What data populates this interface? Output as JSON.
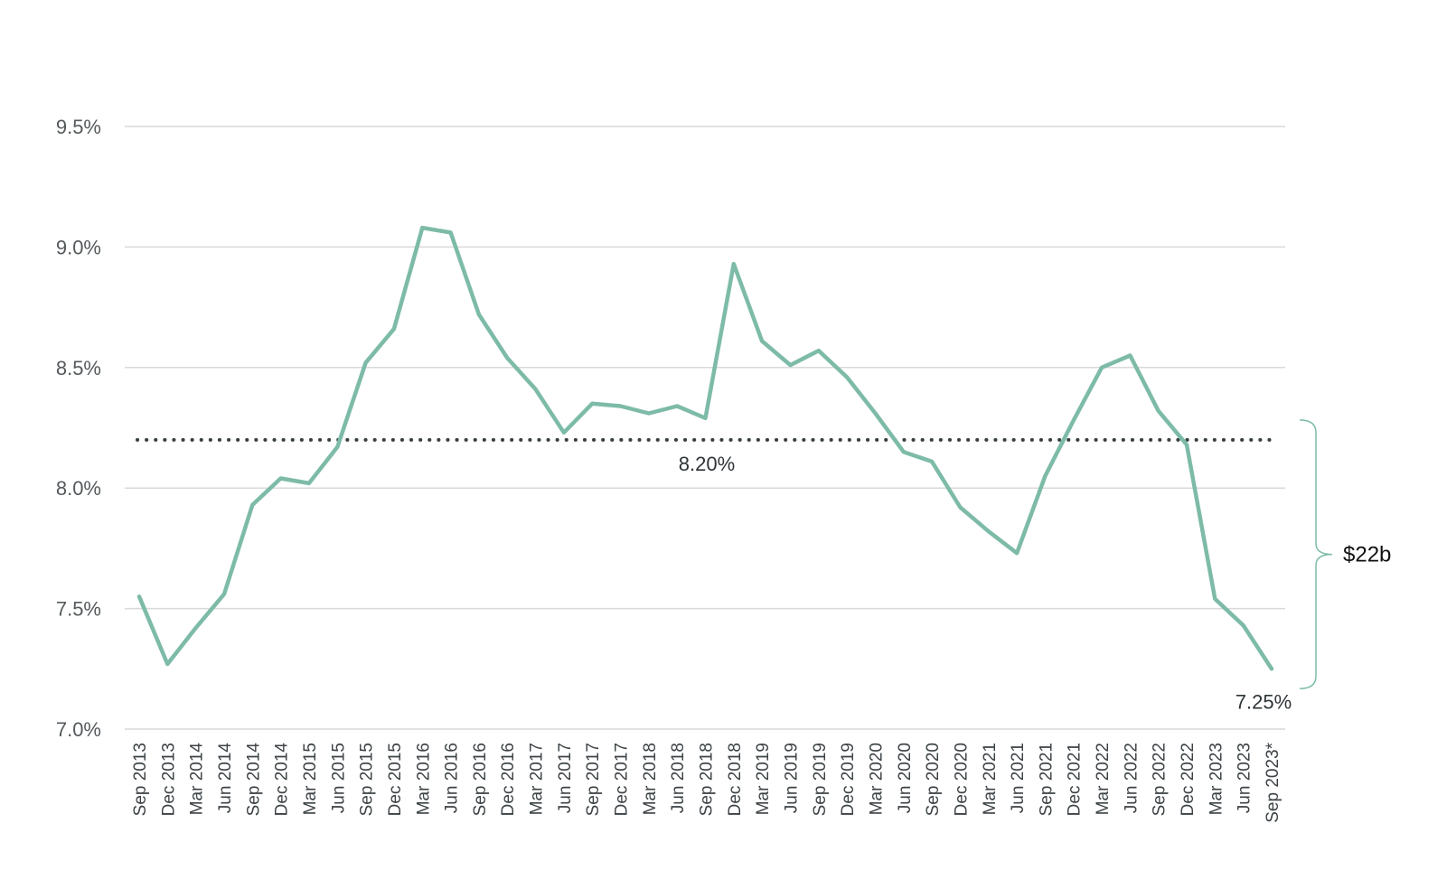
{
  "colors": {
    "series": "#7dbba8",
    "gridline": "#d9d9d9",
    "reference_line": "#37413f",
    "brace": "#7dbba8"
  },
  "chart_data": {
    "type": "line",
    "title": "",
    "xlabel": "",
    "ylabel": "",
    "ylim": [
      7.0,
      9.5
    ],
    "y_ticks": [
      "7.0%",
      "7.5%",
      "8.0%",
      "8.5%",
      "9.0%",
      "9.5%"
    ],
    "y_tick_values": [
      7.0,
      7.5,
      8.0,
      8.5,
      9.0,
      9.5
    ],
    "grid": true,
    "categories": [
      "Sep 2013",
      "Dec 2013",
      "Mar 2014",
      "Jun 2014",
      "Sep 2014",
      "Dec 2014",
      "Mar 2015",
      "Jun 2015",
      "Sep 2015",
      "Dec 2015",
      "Mar 2016",
      "Jun 2016",
      "Sep 2016",
      "Dec 2016",
      "Mar 2017",
      "Jun 2017",
      "Sep 2017",
      "Dec 2017",
      "Mar 2018",
      "Jun 2018",
      "Sep 2018",
      "Dec 2018",
      "Mar 2019",
      "Jun 2019",
      "Sep 2019",
      "Dec 2019",
      "Mar 2020",
      "Jun 2020",
      "Sep 2020",
      "Dec 2020",
      "Mar 2021",
      "Jun 2021",
      "Sep 2021",
      "Dec 2021",
      "Mar 2022",
      "Jun 2022",
      "Sep 2022",
      "Dec 2022",
      "Mar 2023",
      "Jun 2023",
      "Sep 2023*"
    ],
    "series": [
      {
        "values": [
          7.55,
          7.27,
          7.42,
          7.56,
          7.93,
          8.04,
          8.02,
          8.17,
          8.52,
          8.66,
          9.08,
          9.06,
          8.72,
          8.54,
          8.41,
          8.23,
          8.35,
          8.34,
          8.31,
          8.34,
          8.29,
          8.93,
          8.61,
          8.51,
          8.57,
          8.46,
          8.31,
          8.15,
          8.11,
          7.92,
          7.82,
          7.73,
          8.05,
          8.28,
          8.5,
          8.55,
          8.32,
          8.18,
          7.54,
          7.43,
          7.25
        ]
      }
    ],
    "reference_line": {
      "value": 8.2,
      "label": "8.20%"
    },
    "end_label": "7.25%",
    "annotation": {
      "label": "$22b",
      "from": 8.2,
      "to": 7.25
    }
  }
}
